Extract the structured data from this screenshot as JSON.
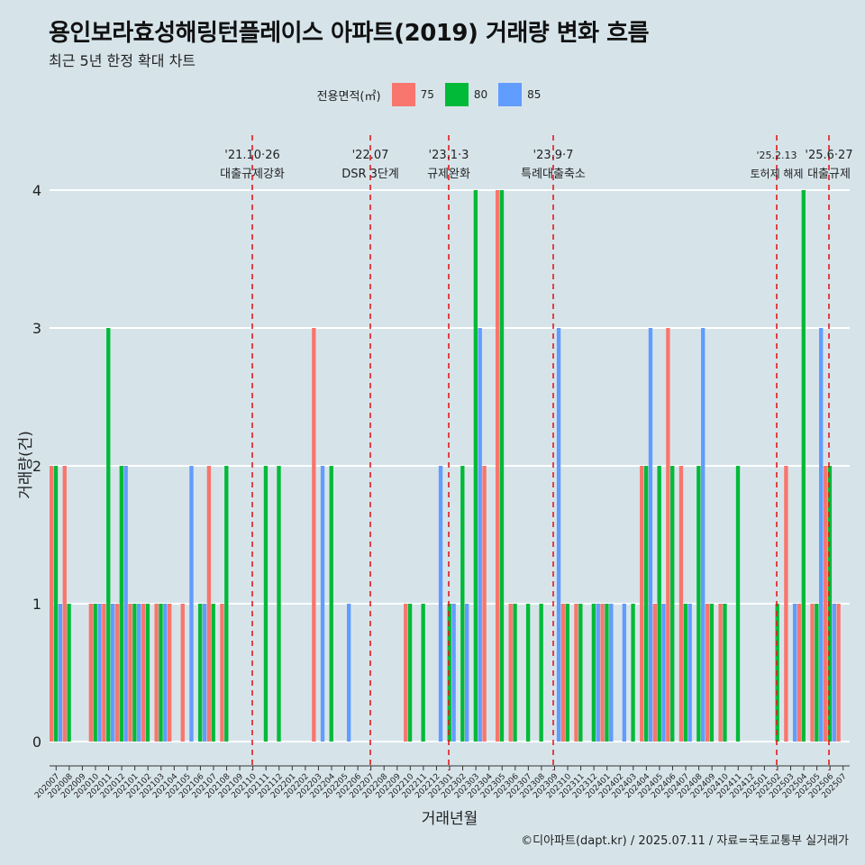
{
  "title": "용인보라효성해링턴플레이스 아파트(2019) 거래량 변화 흐름",
  "subtitle": "최근 5년 한정 확대 차트",
  "caption": "©디아파트(dapt.kr) / 2025.07.11 / 자료=국토교통부 실거래가",
  "legend": {
    "title": "전용면적(㎡)",
    "items": [
      {
        "label": "75",
        "color": "#f8766d"
      },
      {
        "label": "80",
        "color": "#00ba38"
      },
      {
        "label": "85",
        "color": "#619cff"
      }
    ]
  },
  "chart_data": {
    "type": "bar",
    "xlabel": "거래년월",
    "ylabel": "거래량(건)",
    "ylim": [
      0,
      4
    ],
    "yticks": [
      0,
      1,
      2,
      3,
      4
    ],
    "grid": true,
    "legend_position": "top",
    "categories": [
      "202007",
      "202008",
      "202009",
      "202010",
      "202011",
      "202012",
      "202101",
      "202102",
      "202103",
      "202104",
      "202105",
      "202106",
      "202107",
      "202108",
      "202109",
      "202110",
      "202111",
      "202112",
      "202201",
      "202202",
      "202203",
      "202204",
      "202205",
      "202206",
      "202207",
      "202208",
      "202209",
      "202210",
      "202211",
      "202212",
      "202301",
      "202302",
      "202303",
      "202304",
      "202305",
      "202306",
      "202307",
      "202308",
      "202309",
      "202310",
      "202311",
      "202312",
      "202401",
      "202402",
      "202403",
      "202404",
      "202405",
      "202406",
      "202407",
      "202408",
      "202409",
      "202410",
      "202411",
      "202412",
      "202501",
      "202502",
      "202503",
      "202504",
      "202505",
      "202506",
      "202507"
    ],
    "series": [
      {
        "name": "75",
        "values": [
          2,
          2,
          0,
          1,
          1,
          1,
          1,
          1,
          1,
          1,
          1,
          0,
          2,
          1,
          0,
          0,
          0,
          0,
          0,
          0,
          3,
          0,
          0,
          0,
          0,
          0,
          0,
          1,
          0,
          0,
          0,
          0,
          0,
          2,
          4,
          1,
          0,
          0,
          0,
          1,
          1,
          0,
          1,
          0,
          0,
          2,
          1,
          3,
          2,
          0,
          1,
          1,
          0,
          0,
          0,
          0,
          2,
          1,
          1,
          2,
          1
        ]
      },
      {
        "name": "80",
        "values": [
          2,
          1,
          0,
          1,
          3,
          2,
          1,
          1,
          1,
          0,
          0,
          1,
          1,
          2,
          0,
          0,
          2,
          2,
          0,
          0,
          0,
          2,
          0,
          0,
          0,
          0,
          0,
          1,
          1,
          0,
          1,
          2,
          4,
          0,
          4,
          1,
          1,
          1,
          0,
          1,
          1,
          1,
          1,
          0,
          1,
          2,
          2,
          2,
          1,
          2,
          1,
          1,
          2,
          0,
          0,
          1,
          0,
          4,
          1,
          2,
          0
        ]
      },
      {
        "name": "85",
        "values": [
          1,
          0,
          0,
          1,
          1,
          2,
          1,
          0,
          1,
          0,
          2,
          1,
          0,
          0,
          0,
          0,
          0,
          0,
          0,
          0,
          2,
          0,
          1,
          0,
          0,
          0,
          0,
          0,
          0,
          2,
          1,
          1,
          3,
          0,
          0,
          0,
          0,
          0,
          3,
          0,
          0,
          1,
          1,
          1,
          0,
          3,
          1,
          0,
          1,
          3,
          0,
          0,
          0,
          0,
          0,
          0,
          1,
          0,
          3,
          1,
          0
        ]
      }
    ],
    "annotations": [
      {
        "date": "'21.10·26",
        "label": "대출규제강화"
      },
      {
        "date": "'22.07",
        "label": "DSR 3단계"
      },
      {
        "date": "'23.1·3",
        "label": "규제완화"
      },
      {
        "date": "'23.9·7",
        "label": "특례대출축소"
      },
      {
        "date": "'25.2.13",
        "label": "토허제 해제"
      },
      {
        "date": "'25.6·27",
        "label": "대출규제"
      }
    ]
  }
}
